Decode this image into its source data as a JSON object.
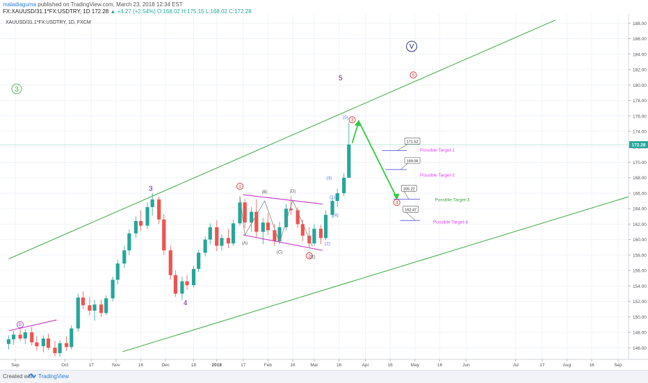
{
  "header": {
    "author": "maladiaguma",
    "published": " published on TradingView.com, March 23, 2018 12:34 EST",
    "symbol_line": "FX:XAUUSD/31.1*FX:USDTRY, 1D",
    "price": "172.28",
    "change": "▲ +4.27 (+2.54%)",
    "open": "O:168.02",
    "high": "H:175.15",
    "low": "L:168.02",
    "close": "C:172.28"
  },
  "legend_title": "XAUUSD/31.1*FX:USDTRY, 1D, FXCM",
  "footer": {
    "created": "Created with",
    "brand": "TradingView"
  },
  "colors": {
    "up": "#26a69a",
    "down": "#ef5350",
    "channel": "#4caf50",
    "arrow": "#2ecc3a",
    "wave_purple": "#6a1b9a",
    "wave_blue": "#5b7bd5",
    "wave_red": "#d32f2f",
    "triangle": "#c236c2",
    "target_line": "#6a6ae0",
    "price_tag": "#26a69a"
  },
  "chart_data": {
    "type": "candlestick",
    "title": "XAUUSD/31.1*FX:USDTRY, 1D, FXCM",
    "ylim": [
      144.5,
      189.2
    ],
    "y_ticks": [
      "146.00",
      "148.00",
      "150.00",
      "152.00",
      "154.00",
      "156.00",
      "158.00",
      "160.00",
      "162.00",
      "164.00",
      "166.00",
      "168.00",
      "170.00",
      "172.00",
      "174.00",
      "176.00",
      "178.00",
      "180.00",
      "182.00",
      "184.00",
      "186.00",
      "188.00"
    ],
    "x_ticks": [
      "Sep",
      "Oct",
      "17",
      "Nov",
      "16",
      "Dec",
      "18",
      "2018",
      "17",
      "Feb",
      "16",
      "Mar",
      "16",
      "Apr",
      "16",
      "May",
      "16",
      "Jun",
      "Jul",
      "17",
      "Aug",
      "16",
      "Sep"
    ],
    "x_tick_days": [
      0,
      30,
      46,
      61,
      76,
      91,
      108,
      122,
      138,
      153,
      168,
      181,
      196,
      212,
      227,
      242,
      257,
      273,
      303,
      319,
      334,
      349,
      365
    ],
    "x_start_date": "2017-09-01",
    "last_price": "172.28",
    "price_labels": [
      "171.52",
      "169.06",
      "165.22",
      "162.47"
    ],
    "target_labels": [
      "Possible Target-1",
      "Possible Target-2",
      "Possible Target-3",
      "Possible Target-4"
    ],
    "wave_labels": {
      "purple": [
        "3",
        "4",
        "5"
      ],
      "green_circled": [
        "3"
      ],
      "navy_circled": [
        "V"
      ],
      "red_circled": [
        "1",
        "2",
        "3",
        "4",
        "5"
      ],
      "purple_circled": [
        "B"
      ],
      "blue": [
        "(1)",
        "(2)",
        "(3)",
        "(4)",
        "(5)"
      ],
      "abcde": [
        "(A)",
        "(B)",
        "(C)",
        "(D)",
        "(E)"
      ]
    },
    "channel_upper": [
      [
        "2017-08-28",
        157.5
      ],
      [
        "2018-07-25",
        188.4
      ]
    ],
    "channel_lower": [
      [
        "2017-11-05",
        145.5
      ],
      [
        "2018-09-25",
        166.7
      ]
    ],
    "candles": [
      {
        "d": "2017-08-28",
        "o": 146.5,
        "h": 147.6,
        "l": 145.8,
        "c": 147.1
      },
      {
        "d": "2017-08-31",
        "o": 147.1,
        "h": 148.2,
        "l": 146.4,
        "c": 147.7
      },
      {
        "d": "2017-09-04",
        "o": 147.7,
        "h": 148.6,
        "l": 146.9,
        "c": 147.2
      },
      {
        "d": "2017-09-07",
        "o": 147.2,
        "h": 148.4,
        "l": 146.5,
        "c": 148.0
      },
      {
        "d": "2017-09-11",
        "o": 148.0,
        "h": 148.7,
        "l": 146.3,
        "c": 146.7
      },
      {
        "d": "2017-09-14",
        "o": 146.7,
        "h": 147.5,
        "l": 145.6,
        "c": 146.2
      },
      {
        "d": "2017-09-18",
        "o": 146.2,
        "h": 147.6,
        "l": 145.4,
        "c": 147.2
      },
      {
        "d": "2017-09-21",
        "o": 147.2,
        "h": 147.8,
        "l": 145.7,
        "c": 146.0
      },
      {
        "d": "2017-09-25",
        "o": 146.0,
        "h": 146.9,
        "l": 144.9,
        "c": 145.3
      },
      {
        "d": "2017-09-28",
        "o": 145.3,
        "h": 147.0,
        "l": 144.8,
        "c": 146.6
      },
      {
        "d": "2017-10-02",
        "o": 146.6,
        "h": 147.5,
        "l": 145.6,
        "c": 146.1
      },
      {
        "d": "2017-10-05",
        "o": 146.1,
        "h": 148.9,
        "l": 145.8,
        "c": 148.5
      },
      {
        "d": "2017-10-09",
        "o": 148.5,
        "h": 153.0,
        "l": 148.1,
        "c": 152.5
      },
      {
        "d": "2017-10-12",
        "o": 152.5,
        "h": 153.3,
        "l": 151.0,
        "c": 151.5
      },
      {
        "d": "2017-10-16",
        "o": 151.5,
        "h": 152.6,
        "l": 150.2,
        "c": 150.8
      },
      {
        "d": "2017-10-19",
        "o": 150.8,
        "h": 152.2,
        "l": 149.5,
        "c": 151.6
      },
      {
        "d": "2017-10-23",
        "o": 151.6,
        "h": 152.2,
        "l": 150.0,
        "c": 150.5
      },
      {
        "d": "2017-10-26",
        "o": 150.5,
        "h": 152.8,
        "l": 150.2,
        "c": 152.4
      },
      {
        "d": "2017-10-30",
        "o": 152.4,
        "h": 155.2,
        "l": 152.0,
        "c": 154.8
      },
      {
        "d": "2017-11-02",
        "o": 154.8,
        "h": 157.4,
        "l": 154.2,
        "c": 156.9
      },
      {
        "d": "2017-11-06",
        "o": 156.9,
        "h": 159.2,
        "l": 156.3,
        "c": 158.6
      },
      {
        "d": "2017-11-09",
        "o": 158.6,
        "h": 161.3,
        "l": 158.0,
        "c": 160.8
      },
      {
        "d": "2017-11-13",
        "o": 160.8,
        "h": 163.0,
        "l": 160.2,
        "c": 162.4
      },
      {
        "d": "2017-11-16",
        "o": 162.4,
        "h": 163.8,
        "l": 161.1,
        "c": 161.8
      },
      {
        "d": "2017-11-20",
        "o": 161.8,
        "h": 164.8,
        "l": 161.4,
        "c": 164.2
      },
      {
        "d": "2017-11-23",
        "o": 164.2,
        "h": 166.0,
        "l": 163.1,
        "c": 165.2
      },
      {
        "d": "2017-11-27",
        "o": 165.2,
        "h": 165.6,
        "l": 162.0,
        "c": 162.6
      },
      {
        "d": "2017-11-30",
        "o": 162.6,
        "h": 163.3,
        "l": 158.0,
        "c": 158.6
      },
      {
        "d": "2017-12-04",
        "o": 158.6,
        "h": 159.2,
        "l": 154.8,
        "c": 155.4
      },
      {
        "d": "2017-12-07",
        "o": 155.4,
        "h": 156.0,
        "l": 152.6,
        "c": 153.0
      },
      {
        "d": "2017-12-11",
        "o": 153.0,
        "h": 155.2,
        "l": 152.2,
        "c": 154.6
      },
      {
        "d": "2017-12-14",
        "o": 154.6,
        "h": 155.4,
        "l": 153.5,
        "c": 154.1
      },
      {
        "d": "2017-12-18",
        "o": 154.1,
        "h": 156.6,
        "l": 153.8,
        "c": 156.2
      },
      {
        "d": "2017-12-21",
        "o": 156.2,
        "h": 158.7,
        "l": 155.8,
        "c": 158.3
      },
      {
        "d": "2017-12-25",
        "o": 158.3,
        "h": 160.4,
        "l": 157.8,
        "c": 160.0
      },
      {
        "d": "2017-12-28",
        "o": 160.0,
        "h": 162.1,
        "l": 159.4,
        "c": 161.6
      },
      {
        "d": "2018-01-01",
        "o": 161.6,
        "h": 162.5,
        "l": 158.5,
        "c": 159.2
      },
      {
        "d": "2018-01-04",
        "o": 159.2,
        "h": 160.7,
        "l": 158.6,
        "c": 160.2
      },
      {
        "d": "2018-01-08",
        "o": 160.2,
        "h": 161.4,
        "l": 158.9,
        "c": 159.5
      },
      {
        "d": "2018-01-11",
        "o": 159.5,
        "h": 162.6,
        "l": 159.2,
        "c": 162.1
      },
      {
        "d": "2018-01-15",
        "o": 162.1,
        "h": 165.6,
        "l": 161.8,
        "c": 164.8
      },
      {
        "d": "2018-01-18",
        "o": 164.8,
        "h": 165.3,
        "l": 161.5,
        "c": 162.2
      },
      {
        "d": "2018-01-22",
        "o": 162.2,
        "h": 164.2,
        "l": 161.0,
        "c": 163.6
      },
      {
        "d": "2018-01-25",
        "o": 163.6,
        "h": 165.2,
        "l": 160.3,
        "c": 161.0
      },
      {
        "d": "2018-01-29",
        "o": 161.0,
        "h": 162.8,
        "l": 159.4,
        "c": 162.2
      },
      {
        "d": "2018-02-01",
        "o": 162.2,
        "h": 163.4,
        "l": 160.6,
        "c": 161.2
      },
      {
        "d": "2018-02-05",
        "o": 161.2,
        "h": 162.0,
        "l": 159.2,
        "c": 159.8
      },
      {
        "d": "2018-02-08",
        "o": 159.8,
        "h": 162.3,
        "l": 159.4,
        "c": 161.6
      },
      {
        "d": "2018-02-12",
        "o": 161.6,
        "h": 164.6,
        "l": 161.2,
        "c": 164.0
      },
      {
        "d": "2018-02-15",
        "o": 164.0,
        "h": 165.6,
        "l": 163.2,
        "c": 163.8
      },
      {
        "d": "2018-02-19",
        "o": 163.8,
        "h": 164.2,
        "l": 161.5,
        "c": 162.0
      },
      {
        "d": "2018-02-22",
        "o": 162.0,
        "h": 162.6,
        "l": 159.8,
        "c": 160.5
      },
      {
        "d": "2018-02-26",
        "o": 160.5,
        "h": 161.6,
        "l": 159.0,
        "c": 159.5
      },
      {
        "d": "2018-03-01",
        "o": 159.5,
        "h": 162.0,
        "l": 159.2,
        "c": 161.4
      },
      {
        "d": "2018-03-05",
        "o": 161.4,
        "h": 161.9,
        "l": 159.4,
        "c": 160.2
      },
      {
        "d": "2018-03-08",
        "o": 160.2,
        "h": 163.8,
        "l": 159.9,
        "c": 163.2
      },
      {
        "d": "2018-03-12",
        "o": 163.2,
        "h": 165.6,
        "l": 162.8,
        "c": 165.0
      },
      {
        "d": "2018-03-15",
        "o": 165.0,
        "h": 166.6,
        "l": 164.2,
        "c": 166.0
      },
      {
        "d": "2018-03-19",
        "o": 166.0,
        "h": 168.6,
        "l": 165.6,
        "c": 168.0
      },
      {
        "d": "2018-03-22",
        "o": 168.0,
        "h": 175.2,
        "l": 168.0,
        "c": 172.3
      }
    ]
  }
}
